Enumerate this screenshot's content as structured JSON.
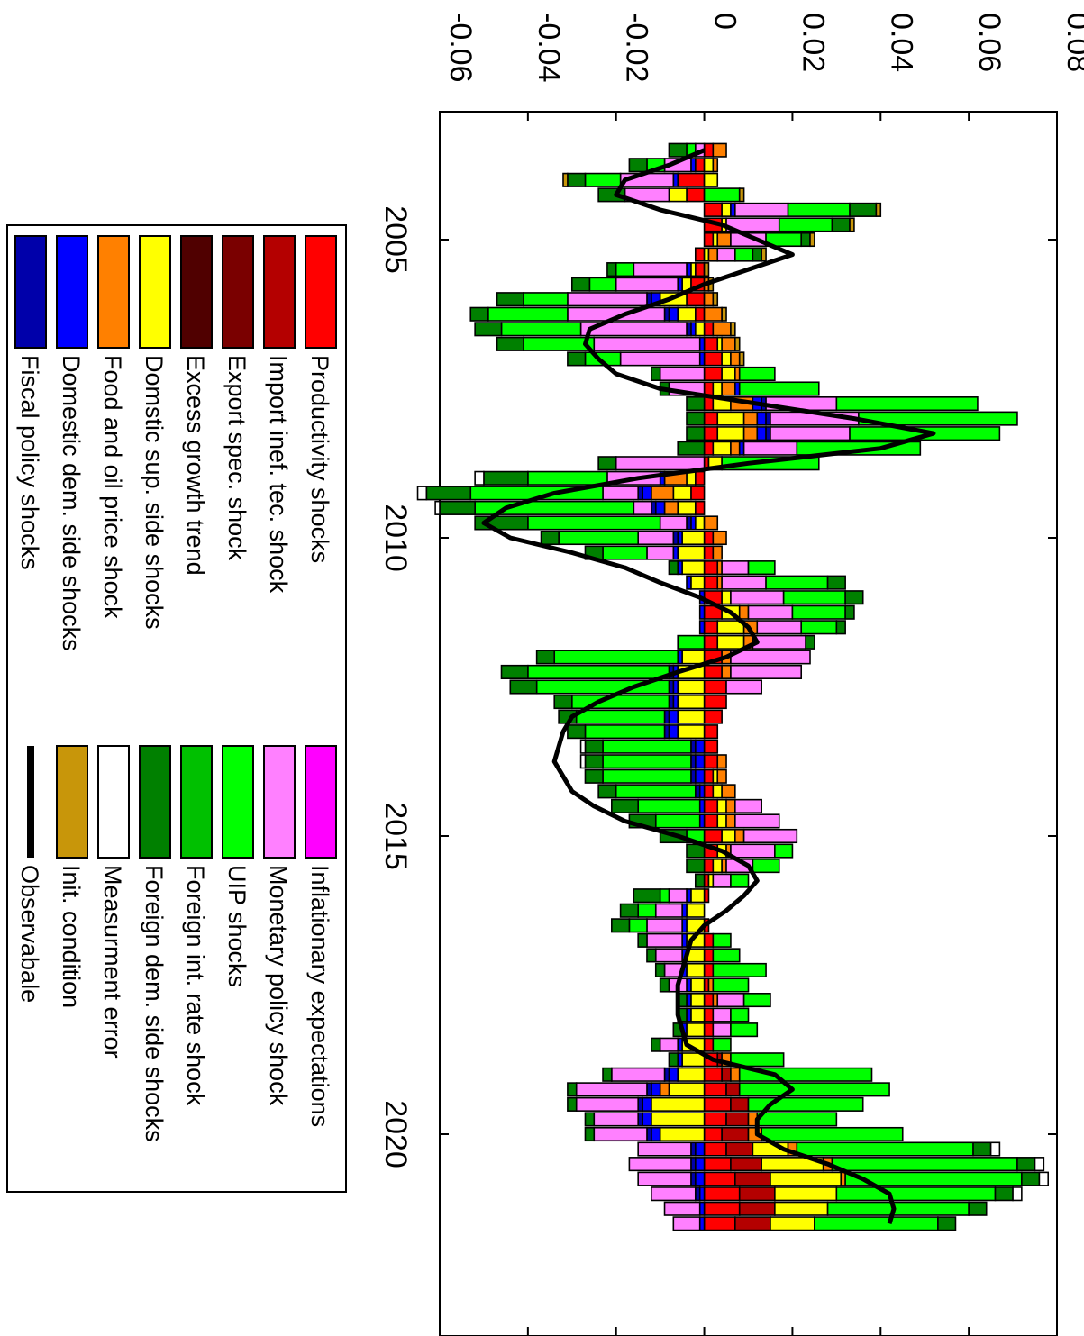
{
  "chart_data": {
    "type": "bar",
    "orientation": "rotated 90 degrees clockwise (time runs downward, values increase to the right)",
    "xlabel": "",
    "ylabel": "",
    "title": "",
    "x_start_year": 2003,
    "periods_per_year": 4,
    "x_ticks": [
      "2005",
      "2010",
      "2015",
      "2020"
    ],
    "y_ticks": [
      "-0.06",
      "-0.04",
      "-0.02",
      "0",
      "0.02",
      "0.04",
      "0.06",
      "0.08"
    ],
    "ylim": [
      -0.06,
      0.08
    ],
    "legend_placement": "left",
    "series": [
      {
        "name": "Productivity shocks",
        "color": "#ff0000"
      },
      {
        "name": "Import inef. tec. shock",
        "color": "#b40000"
      },
      {
        "name": "Export spec. shock",
        "color": "#7a0000"
      },
      {
        "name": "Excess growth trend",
        "color": "#500000"
      },
      {
        "name": "Domstic sup. side shocks",
        "color": "#ffff00"
      },
      {
        "name": "Food and oil price shock",
        "color": "#ff8000"
      },
      {
        "name": "Domestic dem. side shocks",
        "color": "#0000ff"
      },
      {
        "name": "Fiscal policy shocks",
        "color": "#0000aa"
      },
      {
        "name": "Inflationary expectations",
        "color": "#ff00ff"
      },
      {
        "name": "Monetary policy shock",
        "color": "#ff80ff"
      },
      {
        "name": "UIP shocks",
        "color": "#00ff00"
      },
      {
        "name": "Foreign int. rate shock",
        "color": "#00c000"
      },
      {
        "name": "Foreign dem. side shocks",
        "color": "#008000"
      },
      {
        "name": "Measurment error",
        "color": "#ffffff"
      },
      {
        "name": "Init. condition",
        "color": "#c8960a"
      },
      {
        "name": "Observabale",
        "color": "#000000",
        "kind": "line"
      }
    ],
    "observable": [
      0.0,
      -0.008,
      -0.018,
      -0.02,
      -0.01,
      0.004,
      0.012,
      0.02,
      0.01,
      0.0,
      -0.008,
      -0.018,
      -0.026,
      -0.027,
      -0.024,
      -0.02,
      -0.01,
      0.012,
      0.034,
      0.052,
      0.04,
      0.01,
      -0.015,
      -0.034,
      -0.045,
      -0.05,
      -0.044,
      -0.03,
      -0.018,
      -0.01,
      -0.001,
      0.006,
      0.01,
      0.012,
      0.005,
      -0.006,
      -0.016,
      -0.024,
      -0.03,
      -0.032,
      -0.033,
      -0.034,
      -0.032,
      -0.03,
      -0.025,
      -0.018,
      -0.006,
      0.004,
      0.01,
      0.012,
      0.009,
      0.005,
      0.0,
      -0.003,
      -0.004,
      -0.005,
      -0.006,
      -0.006,
      -0.006,
      -0.005,
      -0.004,
      0.002,
      0.016,
      0.02,
      0.015,
      0.012,
      0.012,
      0.018,
      0.028,
      0.036,
      0.042,
      0.043,
      0.042
    ],
    "components": {
      "Productivity shocks": [
        0.002,
        -0.002,
        -0.006,
        -0.004,
        0.004,
        0.004,
        0.002,
        -0.002,
        -0.002,
        -0.003,
        -0.004,
        -0.002,
        0.002,
        0.003,
        0.004,
        0.004,
        0.002,
        0.002,
        0.003,
        0.003,
        0.002,
        0.001,
        -0.002,
        -0.003,
        -0.002,
        0.0,
        0.002,
        0.002,
        0.003,
        0.003,
        0.004,
        0.004,
        0.003,
        0.003,
        0.004,
        0.004,
        0.005,
        0.005,
        0.004,
        0.003,
        0.003,
        0.003,
        0.002,
        0.002,
        0.003,
        0.003,
        0.004,
        0.003,
        0.002,
        0.001,
        0.001,
        0.0,
        0.001,
        0.002,
        0.002,
        0.002,
        0.001,
        0.002,
        0.002,
        0.002,
        0.002,
        0.003,
        0.004,
        0.005,
        0.006,
        0.005,
        0.004,
        0.005,
        0.006,
        0.007,
        0.008,
        0.008,
        0.007
      ],
      "Import inef. tec. shock": [
        0.0,
        0.0,
        0.0,
        0.0,
        0.0,
        0.0,
        0.0,
        0.0,
        0.0,
        0.0,
        0.0,
        0.0,
        0.0,
        0.0,
        0.0,
        0.0,
        0.0,
        0.0,
        0.0,
        0.0,
        0.0,
        0.0,
        0.0,
        0.0,
        0.0,
        0.0,
        0.0,
        0.0,
        0.0,
        0.0,
        0.0,
        0.0,
        0.0,
        0.0,
        0.0,
        0.0,
        0.0,
        0.0,
        0.0,
        0.0,
        0.0,
        0.0,
        0.0,
        0.0,
        0.0,
        0.0,
        0.0,
        0.0,
        0.0,
        0.0,
        0.0,
        0.0,
        0.0,
        0.0,
        0.0,
        0.0,
        0.0,
        0.0,
        0.0,
        0.0,
        0.0,
        0.001,
        0.002,
        0.003,
        0.004,
        0.005,
        0.006,
        0.006,
        0.007,
        0.008,
        0.008,
        0.008,
        0.008
      ],
      "Export spec. shock": [
        0.0,
        0.0,
        0.0,
        0.0,
        0.0,
        0.0,
        0.0,
        0.0,
        0.0,
        0.0,
        0.0,
        0.0,
        0.0,
        0.0,
        0.0,
        0.0,
        0.0,
        0.0,
        0.0,
        0.0,
        0.0,
        0.0,
        0.0,
        0.0,
        0.0,
        0.0,
        0.0,
        0.0,
        0.0,
        0.0,
        0.0,
        0.0,
        0.0,
        0.0,
        0.0,
        0.0,
        0.0,
        0.0,
        0.0,
        0.0,
        0.0,
        0.0,
        0.0,
        0.0,
        0.0,
        0.0,
        0.0,
        0.0,
        0.0,
        0.0,
        0.0,
        0.0,
        0.0,
        0.0,
        0.0,
        0.0,
        0.0,
        0.0,
        0.0,
        0.0,
        0.0,
        0.0,
        0.0,
        0.0,
        0.0,
        0.0,
        0.0,
        0.0,
        0.0,
        0.0,
        0.0,
        0.0,
        0.0
      ],
      "Excess growth trend": [
        0.0,
        0.0,
        0.0,
        0.0,
        0.0,
        0.0,
        0.0,
        0.0,
        0.0,
        0.0,
        0.0,
        0.0,
        0.0,
        0.0,
        0.0,
        0.0,
        0.0,
        0.0,
        0.0,
        0.0,
        0.0,
        0.0,
        0.0,
        0.0,
        0.0,
        0.0,
        0.0,
        0.0,
        0.0,
        0.0,
        0.0,
        0.0,
        0.0,
        0.0,
        0.0,
        0.0,
        0.0,
        0.0,
        0.0,
        0.0,
        0.0,
        0.0,
        0.0,
        0.0,
        0.0,
        0.0,
        0.0,
        0.0,
        0.0,
        0.0,
        0.0,
        0.0,
        0.0,
        0.0,
        0.0,
        0.0,
        0.0,
        0.0,
        0.0,
        0.0,
        0.0,
        0.0,
        0.0,
        0.0,
        0.0,
        0.0,
        0.0,
        0.0,
        0.0,
        0.0,
        0.0,
        0.0,
        0.0
      ],
      "Domstic sup. side shocks": [
        0.0,
        0.002,
        0.003,
        -0.004,
        0.002,
        0.001,
        0.001,
        0.001,
        -0.001,
        -0.002,
        -0.006,
        -0.004,
        -0.002,
        0.001,
        0.002,
        0.003,
        0.002,
        0.004,
        0.006,
        0.006,
        0.004,
        0.003,
        -0.002,
        -0.004,
        -0.004,
        -0.002,
        -0.005,
        -0.006,
        -0.005,
        -0.003,
        0.002,
        0.004,
        0.006,
        0.006,
        -0.005,
        -0.006,
        -0.006,
        -0.006,
        -0.006,
        -0.006,
        0.0,
        0.0,
        0.001,
        0.002,
        0.002,
        0.002,
        0.003,
        0.002,
        0.002,
        0.001,
        -0.003,
        -0.004,
        -0.004,
        -0.004,
        -0.004,
        -0.004,
        -0.003,
        -0.003,
        -0.003,
        -0.004,
        -0.005,
        -0.005,
        -0.006,
        -0.008,
        -0.012,
        -0.012,
        -0.01,
        0.008,
        0.014,
        0.016,
        0.014,
        0.012,
        0.01
      ],
      "Food and oil price shock": [
        0.003,
        0.001,
        0.0,
        0.0,
        0.0,
        0.0,
        0.003,
        0.002,
        0.0,
        0.001,
        0.002,
        0.004,
        0.004,
        0.003,
        0.002,
        0.001,
        0.003,
        0.005,
        0.003,
        0.003,
        0.002,
        0.0,
        -0.005,
        -0.005,
        -0.003,
        0.003,
        0.003,
        0.002,
        0.001,
        0.001,
        0.0,
        0.002,
        0.003,
        0.002,
        0.002,
        0.002,
        0.0,
        0.0,
        0.0,
        0.0,
        0.0,
        0.002,
        0.002,
        0.003,
        0.002,
        0.002,
        0.002,
        0.001,
        0.001,
        0.0,
        0.0,
        0.0,
        0.0,
        0.0,
        0.0,
        0.0,
        0.001,
        0.001,
        0.0,
        0.0,
        0.0,
        0.002,
        0.002,
        -0.002,
        0.0,
        0.002,
        0.003,
        0.002,
        0.002,
        0.001,
        0.0,
        0.0,
        0.0
      ],
      "Domestic dem. side shocks": [
        0.0,
        -0.001,
        -0.001,
        0.0,
        0.001,
        0.0,
        0.0,
        0.0,
        -0.001,
        -0.001,
        -0.002,
        -0.002,
        -0.001,
        -0.001,
        -0.001,
        0.0,
        0.001,
        0.002,
        0.002,
        0.002,
        0.001,
        0.0,
        -0.001,
        -0.002,
        -0.002,
        -0.001,
        -0.001,
        -0.001,
        -0.001,
        -0.001,
        -0.001,
        -0.001,
        -0.001,
        0.0,
        -0.001,
        -0.001,
        -0.001,
        -0.001,
        -0.002,
        -0.002,
        -0.002,
        -0.002,
        -0.002,
        -0.001,
        -0.001,
        -0.001,
        0.0,
        0.0,
        0.0,
        0.0,
        -0.001,
        -0.001,
        -0.001,
        -0.001,
        -0.001,
        -0.001,
        -0.001,
        -0.001,
        -0.001,
        -0.001,
        -0.001,
        -0.001,
        -0.002,
        -0.002,
        -0.002,
        -0.002,
        -0.002,
        -0.002,
        -0.002,
        -0.002,
        -0.001,
        -0.001,
        -0.001
      ],
      "Fiscal policy shocks": [
        0.0,
        0.0,
        0.0,
        0.0,
        0.0,
        0.0,
        0.0,
        0.0,
        0.0,
        0.0,
        -0.001,
        -0.001,
        -0.001,
        0.0,
        0.0,
        0.0,
        0.0,
        0.001,
        0.001,
        0.001,
        0.0,
        0.0,
        0.0,
        -0.001,
        -0.001,
        -0.001,
        -0.001,
        0.0,
        0.0,
        0.0,
        0.0,
        0.0,
        0.0,
        0.0,
        0.0,
        -0.001,
        -0.001,
        -0.001,
        -0.001,
        -0.001,
        -0.001,
        -0.001,
        -0.001,
        -0.001,
        0.0,
        0.0,
        0.0,
        0.0,
        0.0,
        0.0,
        0.0,
        0.0,
        0.0,
        0.0,
        0.0,
        0.0,
        0.0,
        0.0,
        0.0,
        0.0,
        0.0,
        0.0,
        -0.001,
        -0.001,
        -0.001,
        -0.001,
        -0.001,
        -0.001,
        -0.001,
        -0.001,
        -0.001,
        0.0,
        0.0
      ],
      "Inflationary expectations": [
        0.0,
        0.0,
        0.0,
        0.0,
        0.0,
        0.0,
        0.0,
        0.0,
        0.0,
        0.0,
        0.0,
        0.0,
        0.0,
        0.0,
        0.0,
        0.0,
        0.0,
        0.0,
        0.0,
        0.0,
        0.0,
        0.0,
        0.0,
        0.0,
        0.0,
        0.0,
        0.0,
        0.0,
        0.0,
        0.0,
        0.0,
        0.0,
        0.0,
        0.0,
        0.0,
        0.0,
        0.0,
        0.0,
        0.0,
        0.0,
        0.0,
        0.0,
        0.0,
        0.0,
        0.0,
        0.0,
        0.0,
        0.0,
        0.0,
        0.0,
        0.0,
        0.0,
        0.0,
        0.0,
        0.0,
        0.0,
        0.0,
        0.0,
        0.0,
        0.0,
        0.0,
        0.0,
        0.0,
        0.0,
        0.0,
        0.0,
        0.0,
        0.0,
        0.0,
        0.0,
        0.0,
        0.0,
        0.0
      ],
      "Monetary policy shock": [
        -0.002,
        -0.006,
        -0.012,
        -0.01,
        0.012,
        0.012,
        0.008,
        0.004,
        -0.012,
        -0.014,
        -0.018,
        -0.022,
        -0.024,
        -0.024,
        -0.018,
        -0.01,
        -0.008,
        0.016,
        0.02,
        0.018,
        0.012,
        -0.02,
        -0.012,
        -0.008,
        -0.004,
        -0.006,
        -0.008,
        -0.006,
        0.006,
        0.01,
        0.012,
        0.01,
        0.01,
        0.012,
        0.018,
        0.016,
        0.008,
        0.0,
        0.0,
        0.0,
        0.0,
        0.0,
        0.0,
        0.0,
        0.006,
        0.01,
        0.012,
        0.01,
        0.006,
        0.004,
        -0.004,
        -0.006,
        -0.008,
        -0.008,
        -0.006,
        -0.004,
        -0.004,
        0.006,
        0.004,
        0.004,
        -0.004,
        0.0,
        -0.012,
        -0.016,
        -0.014,
        -0.01,
        -0.012,
        -0.012,
        -0.014,
        -0.012,
        -0.01,
        -0.008,
        -0.006
      ],
      "UIP shocks": [
        -0.002,
        -0.004,
        -0.008,
        0.008,
        0.014,
        0.012,
        0.008,
        0.004,
        -0.004,
        -0.006,
        -0.01,
        -0.018,
        -0.018,
        -0.016,
        -0.008,
        0.008,
        0.018,
        0.032,
        0.036,
        0.034,
        0.028,
        0.022,
        -0.018,
        -0.03,
        -0.036,
        -0.03,
        -0.018,
        -0.01,
        0.006,
        0.014,
        0.014,
        0.012,
        0.008,
        -0.006,
        -0.028,
        -0.032,
        -0.03,
        -0.022,
        -0.02,
        -0.018,
        -0.02,
        -0.02,
        -0.02,
        -0.018,
        -0.014,
        -0.01,
        -0.004,
        0.004,
        0.006,
        0.004,
        -0.002,
        -0.004,
        -0.004,
        0.004,
        0.006,
        0.012,
        0.008,
        0.006,
        0.004,
        0.006,
        0.004,
        0.012,
        0.03,
        0.034,
        0.026,
        0.018,
        0.032,
        0.04,
        0.042,
        0.04,
        0.036,
        0.032,
        0.028
      ],
      "Foreign int. rate shock": [
        0.0,
        0.0,
        0.0,
        0.0,
        0.0,
        0.0,
        0.0,
        0.0,
        0.0,
        0.0,
        0.0,
        0.0,
        0.0,
        0.0,
        0.0,
        0.0,
        0.0,
        0.0,
        0.0,
        0.0,
        0.0,
        0.0,
        0.0,
        0.0,
        0.0,
        0.0,
        0.0,
        0.0,
        0.0,
        0.0,
        0.0,
        0.0,
        0.0,
        0.0,
        0.0,
        0.0,
        0.0,
        0.0,
        0.0,
        0.0,
        0.0,
        0.0,
        0.0,
        0.0,
        0.0,
        0.0,
        0.0,
        0.0,
        0.0,
        0.0,
        0.0,
        0.0,
        0.0,
        0.0,
        0.0,
        0.0,
        0.0,
        0.0,
        0.0,
        0.0,
        0.0,
        0.0,
        0.0,
        0.0,
        0.0,
        0.0,
        0.0,
        0.0,
        0.0,
        0.0,
        0.0,
        0.0,
        0.0
      ],
      "Foreign dem. side shocks": [
        -0.004,
        -0.004,
        -0.004,
        -0.006,
        0.006,
        0.004,
        0.002,
        0.002,
        -0.002,
        -0.004,
        -0.006,
        -0.004,
        -0.006,
        -0.006,
        -0.004,
        -0.002,
        -0.002,
        -0.004,
        -0.004,
        -0.004,
        -0.006,
        -0.004,
        -0.01,
        -0.01,
        -0.008,
        -0.012,
        -0.004,
        -0.004,
        -0.002,
        0.004,
        0.004,
        0.002,
        0.002,
        0.002,
        -0.004,
        -0.006,
        -0.006,
        -0.004,
        -0.004,
        -0.004,
        -0.004,
        -0.004,
        -0.004,
        -0.004,
        -0.006,
        -0.006,
        -0.006,
        -0.004,
        -0.004,
        -0.002,
        -0.006,
        -0.004,
        -0.004,
        -0.002,
        -0.002,
        -0.002,
        -0.002,
        -0.002,
        -0.002,
        -0.002,
        -0.002,
        -0.002,
        -0.002,
        -0.002,
        -0.002,
        -0.002,
        -0.002,
        0.004,
        0.004,
        0.004,
        0.004,
        0.004,
        0.004
      ],
      "Measurment error": [
        0.0,
        0.0,
        0.0,
        0.0,
        0.0,
        0.0,
        0.0,
        0.0,
        0.0,
        0.0,
        0.0,
        0.0,
        0.0,
        0.0,
        0.0,
        0.0,
        0.0,
        0.0,
        0.0,
        0.0,
        0.0,
        0.0,
        -0.002,
        -0.002,
        -0.001,
        0.0,
        0.0,
        0.0,
        0.0,
        0.0,
        0.0,
        0.0,
        0.0,
        0.0,
        0.0,
        0.0,
        0.0,
        0.0,
        0.0,
        0.0,
        -0.001,
        -0.001,
        0.0,
        0.0,
        0.0,
        0.0,
        0.0,
        0.0,
        0.0,
        0.0,
        0.0,
        0.0,
        0.0,
        0.0,
        0.0,
        0.0,
        0.0,
        0.0,
        0.0,
        0.0,
        0.0,
        0.0,
        0.0,
        0.0,
        0.0,
        0.0,
        0.0,
        0.002,
        0.002,
        0.002,
        0.002,
        0.0,
        0.0
      ],
      "Init. condition": [
        0.0,
        0.0,
        -0.001,
        0.001,
        0.001,
        0.001,
        0.001,
        0.001,
        0.001,
        0.001,
        0.001,
        0.001,
        0.001,
        0.001,
        0.001,
        0.0,
        0.0,
        0.0,
        0.0,
        0.0,
        0.0,
        0.0,
        0.0,
        0.0,
        0.0,
        0.0,
        0.0,
        0.0,
        0.0,
        0.0,
        0.0,
        0.0,
        0.0,
        0.0,
        0.0,
        0.0,
        0.0,
        0.0,
        0.0,
        0.0,
        0.0,
        0.0,
        0.0,
        0.0,
        0.0,
        0.0,
        0.0,
        0.0,
        0.0,
        0.0,
        0.0,
        0.0,
        0.0,
        0.0,
        0.0,
        0.0,
        0.0,
        0.0,
        0.0,
        0.0,
        0.0,
        0.0,
        0.0,
        0.0,
        0.0,
        0.0,
        0.0,
        0.0,
        0.0,
        0.0,
        0.0,
        0.0,
        0.0
      ]
    }
  }
}
